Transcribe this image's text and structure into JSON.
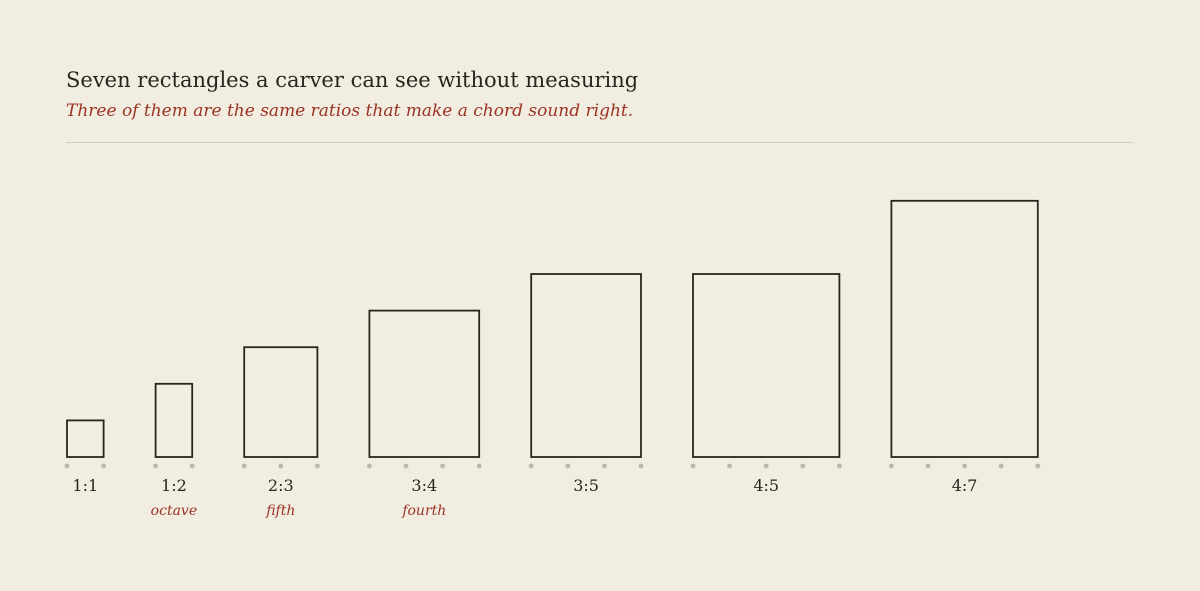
{
  "title": "Seven rectangles a carver can see without measuring",
  "subtitle": "Three of them are the same ratios that make a chord sound right.",
  "colors": {
    "background": "#f2ede1",
    "ink": "#2a241e",
    "accent": "#9a3324",
    "dots": "#bdb6aa",
    "rule": "#d5cfc2"
  },
  "rectangles": [
    {
      "ratio": "1:1",
      "interval": "",
      "width_parts": 1,
      "height_parts": 1,
      "dots": 2
    },
    {
      "ratio": "1:2",
      "interval": "octave",
      "width_parts": 1,
      "height_parts": 2,
      "dots": 2
    },
    {
      "ratio": "2:3",
      "interval": "fifth",
      "width_parts": 2,
      "height_parts": 3,
      "dots": 3
    },
    {
      "ratio": "3:4",
      "interval": "fourth",
      "width_parts": 3,
      "height_parts": 4,
      "dots": 4
    },
    {
      "ratio": "3:5",
      "interval": "",
      "width_parts": 3,
      "height_parts": 5,
      "dots": 4
    },
    {
      "ratio": "4:5",
      "interval": "",
      "width_parts": 4,
      "height_parts": 5,
      "dots": 5
    },
    {
      "ratio": "4:7",
      "interval": "",
      "width_parts": 4,
      "height_parts": 7,
      "dots": 5
    }
  ]
}
